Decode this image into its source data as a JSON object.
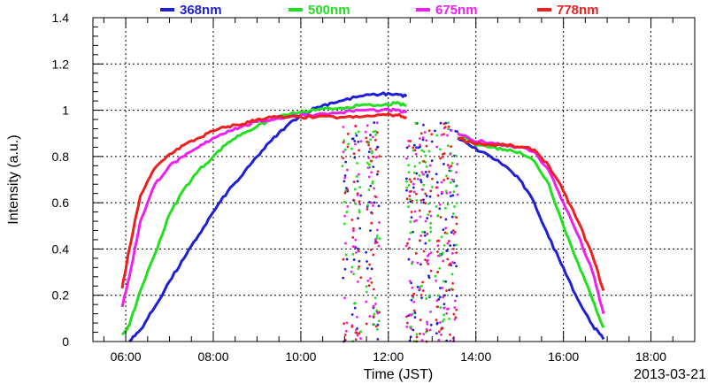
{
  "chart_data": {
    "type": "line",
    "xlabel": "Time (JST)",
    "ylabel": "Intensity (a.u.)",
    "date_label": "2013-03-21",
    "xlim": [
      "05:15",
      "19:00"
    ],
    "ylim": [
      0,
      1.4
    ],
    "x_ticks": [
      "06:00",
      "08:00",
      "10:00",
      "12:00",
      "14:00",
      "16:00",
      "18:00"
    ],
    "y_ticks": [
      "0",
      "0.2",
      "0.4",
      "0.6",
      "0.8",
      "1",
      "1.2",
      "1.4"
    ],
    "grid": true,
    "legend_position": "top",
    "series": [
      {
        "name": "368nm",
        "color": "#1f1fd6",
        "points": [
          [
            "06:05",
            0.0
          ],
          [
            "06:20",
            0.05
          ],
          [
            "06:40",
            0.15
          ],
          [
            "07:00",
            0.26
          ],
          [
            "07:20",
            0.36
          ],
          [
            "07:40",
            0.46
          ],
          [
            "08:00",
            0.56
          ],
          [
            "08:20",
            0.65
          ],
          [
            "08:40",
            0.72
          ],
          [
            "09:00",
            0.8
          ],
          [
            "09:20",
            0.87
          ],
          [
            "09:40",
            0.93
          ],
          [
            "10:00",
            0.98
          ],
          [
            "10:20",
            1.01
          ],
          [
            "10:40",
            1.03
          ],
          [
            "10:55",
            1.04
          ],
          [
            "11:20",
            1.06
          ],
          [
            "11:50",
            1.07
          ],
          [
            "12:10",
            1.07
          ],
          [
            "12:25",
            1.06
          ],
          [
            "13:35",
            0.88
          ],
          [
            "13:55",
            0.84
          ],
          [
            "14:20",
            0.8
          ],
          [
            "14:40",
            0.76
          ],
          [
            "15:00",
            0.7
          ],
          [
            "15:20",
            0.6
          ],
          [
            "15:40",
            0.45
          ],
          [
            "16:00",
            0.32
          ],
          [
            "16:20",
            0.18
          ],
          [
            "16:40",
            0.07
          ],
          [
            "16:55",
            0.01
          ]
        ]
      },
      {
        "name": "500nm",
        "color": "#22e01f",
        "points": [
          [
            "05:55",
            0.03
          ],
          [
            "06:05",
            0.07
          ],
          [
            "06:20",
            0.22
          ],
          [
            "06:40",
            0.38
          ],
          [
            "07:00",
            0.55
          ],
          [
            "07:20",
            0.66
          ],
          [
            "07:40",
            0.74
          ],
          [
            "08:00",
            0.8
          ],
          [
            "08:20",
            0.86
          ],
          [
            "08:40",
            0.9
          ],
          [
            "09:00",
            0.93
          ],
          [
            "09:20",
            0.96
          ],
          [
            "09:40",
            0.98
          ],
          [
            "10:00",
            0.99
          ],
          [
            "10:20",
            1.0
          ],
          [
            "10:55",
            1.01
          ],
          [
            "11:20",
            1.02
          ],
          [
            "11:50",
            1.02
          ],
          [
            "12:10",
            1.03
          ],
          [
            "12:25",
            1.02
          ],
          [
            "13:35",
            0.9
          ],
          [
            "13:55",
            0.86
          ],
          [
            "14:20",
            0.84
          ],
          [
            "14:40",
            0.83
          ],
          [
            "15:00",
            0.82
          ],
          [
            "15:20",
            0.78
          ],
          [
            "15:40",
            0.68
          ],
          [
            "16:00",
            0.5
          ],
          [
            "16:20",
            0.34
          ],
          [
            "16:40",
            0.18
          ],
          [
            "16:55",
            0.06
          ]
        ]
      },
      {
        "name": "675nm",
        "color": "#f01ff0",
        "points": [
          [
            "05:55",
            0.15
          ],
          [
            "06:05",
            0.28
          ],
          [
            "06:20",
            0.52
          ],
          [
            "06:40",
            0.68
          ],
          [
            "07:00",
            0.76
          ],
          [
            "07:20",
            0.8
          ],
          [
            "07:40",
            0.84
          ],
          [
            "08:00",
            0.88
          ],
          [
            "08:20",
            0.91
          ],
          [
            "08:40",
            0.93
          ],
          [
            "09:00",
            0.95
          ],
          [
            "09:20",
            0.96
          ],
          [
            "09:40",
            0.97
          ],
          [
            "10:00",
            0.98
          ],
          [
            "10:20",
            0.98
          ],
          [
            "10:55",
            0.99
          ],
          [
            "11:20",
            1.0
          ],
          [
            "11:50",
            1.0
          ],
          [
            "12:10",
            1.0
          ],
          [
            "12:25",
            0.99
          ],
          [
            "13:35",
            0.9
          ],
          [
            "13:55",
            0.87
          ],
          [
            "14:20",
            0.86
          ],
          [
            "14:40",
            0.85
          ],
          [
            "15:00",
            0.84
          ],
          [
            "15:20",
            0.82
          ],
          [
            "15:40",
            0.74
          ],
          [
            "16:00",
            0.6
          ],
          [
            "16:20",
            0.46
          ],
          [
            "16:40",
            0.3
          ],
          [
            "16:55",
            0.12
          ]
        ]
      },
      {
        "name": "778nm",
        "color": "#ee1f1f",
        "points": [
          [
            "05:55",
            0.23
          ],
          [
            "06:05",
            0.4
          ],
          [
            "06:20",
            0.63
          ],
          [
            "06:40",
            0.75
          ],
          [
            "07:00",
            0.81
          ],
          [
            "07:20",
            0.85
          ],
          [
            "07:40",
            0.88
          ],
          [
            "08:00",
            0.91
          ],
          [
            "08:20",
            0.93
          ],
          [
            "08:40",
            0.94
          ],
          [
            "09:00",
            0.96
          ],
          [
            "09:20",
            0.97
          ],
          [
            "09:40",
            0.97
          ],
          [
            "10:00",
            0.97
          ],
          [
            "10:20",
            0.97
          ],
          [
            "10:55",
            0.97
          ],
          [
            "11:20",
            0.97
          ],
          [
            "11:50",
            0.98
          ],
          [
            "12:10",
            0.98
          ],
          [
            "12:25",
            0.97
          ],
          [
            "13:35",
            0.88
          ],
          [
            "13:55",
            0.86
          ],
          [
            "14:20",
            0.85
          ],
          [
            "14:40",
            0.85
          ],
          [
            "15:00",
            0.84
          ],
          [
            "15:20",
            0.83
          ],
          [
            "15:40",
            0.76
          ],
          [
            "16:00",
            0.65
          ],
          [
            "16:20",
            0.52
          ],
          [
            "16:40",
            0.37
          ],
          [
            "16:55",
            0.22
          ]
        ]
      }
    ]
  }
}
